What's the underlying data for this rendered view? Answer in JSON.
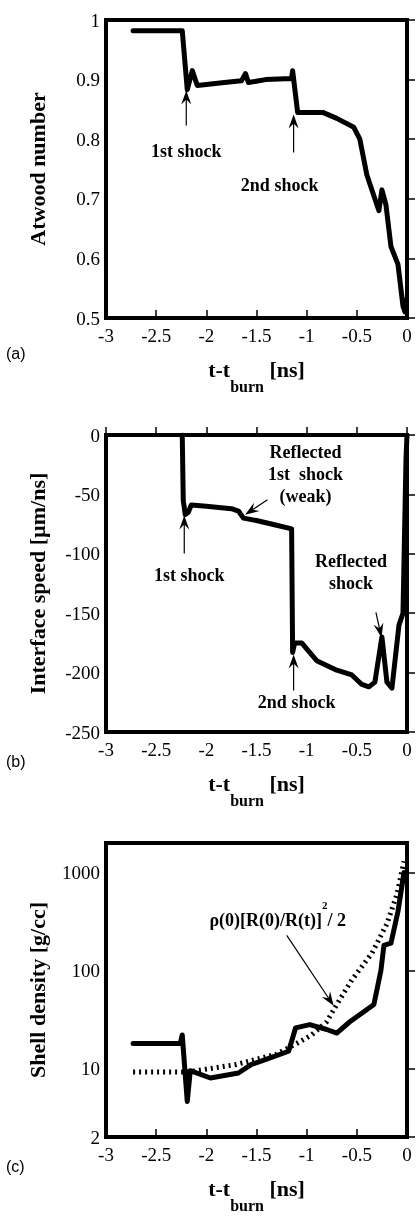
{
  "chart_data": [
    {
      "type": "line",
      "xlabel": "t-t$_{burn}$ [ns]",
      "ylabel": "Atwood number",
      "xlim": [
        -3,
        0
      ],
      "xticks": [
        -3,
        -2.5,
        -2,
        -1.5,
        -1,
        -0.5,
        0
      ],
      "ylim": [
        0.5,
        1
      ],
      "yticks": [
        0.5,
        0.6,
        0.7,
        0.8,
        0.9,
        1
      ],
      "grid": false,
      "marker": "none",
      "annotations": [
        {
          "text": "1st shock",
          "x": -2.2,
          "y": 0.885
        },
        {
          "text": "2nd shock",
          "x": -1.13,
          "y": 0.845
        },
        "(a)"
      ],
      "series": [
        {
          "color": "#000000",
          "line_style": "solid",
          "x": [
            -2.73,
            -2.24,
            -2.19,
            -2.14,
            -2.09,
            -1.82,
            -1.65,
            -1.61,
            -1.58,
            -1.41,
            -1.15,
            -1.14,
            -1.09,
            -0.84,
            -0.7,
            -0.53,
            -0.47,
            -0.4,
            -0.28,
            -0.25,
            -0.21,
            -0.16,
            -0.09,
            -0.04,
            -0.02,
            -0.01
          ],
          "values": [
            0.982,
            0.982,
            0.883,
            0.915,
            0.89,
            0.895,
            0.898,
            0.91,
            0.895,
            0.9,
            0.902,
            0.915,
            0.845,
            0.845,
            0.835,
            0.82,
            0.8,
            0.74,
            0.68,
            0.715,
            0.69,
            0.62,
            0.59,
            0.52,
            0.51,
            0.53
          ]
        }
      ]
    },
    {
      "type": "line",
      "xlabel": "t-t$_{burn}$ [ns]",
      "ylabel": "Interface speed [µm/ns]",
      "xlim": [
        -3,
        0
      ],
      "xticks": [
        -3,
        -2.5,
        -2,
        -1.5,
        -1,
        -0.5,
        0
      ],
      "ylim": [
        -250,
        0
      ],
      "yticks": [
        -250,
        -200,
        -150,
        -100,
        -50,
        0
      ],
      "grid": false,
      "marker": "none",
      "annotations": [
        {
          "text": "1st shock",
          "x": -2.22,
          "y": -66
        },
        {
          "text": "2nd shock",
          "x": -1.13,
          "y": -183
        },
        {
          "text": "Reflected\n1st  shock\n(weak)",
          "x": -1.63,
          "y": -68
        },
        {
          "text": "Reflected\nshock",
          "x": -0.25,
          "y": -172
        },
        "(b)"
      ],
      "series": [
        {
          "color": "#000000",
          "line_style": "solid",
          "x": [
            -2.24,
            -2.23,
            -2.21,
            -2.18,
            -2.15,
            -2.0,
            -1.75,
            -1.68,
            -1.63,
            -1.5,
            -1.3,
            -1.15,
            -1.14,
            -1.12,
            -1.05,
            -0.9,
            -0.7,
            -0.55,
            -0.45,
            -0.38,
            -0.32,
            -0.25,
            -0.2,
            -0.15,
            -0.08,
            -0.04,
            -0.01,
            0
          ],
          "values": [
            0,
            -55,
            -67,
            -65,
            -59,
            -60,
            -62,
            -64,
            -70,
            -72,
            -76,
            -79,
            -183,
            -175,
            -175,
            -190,
            -198,
            -202,
            -210,
            -212,
            -208,
            -170,
            -208,
            -213,
            -160,
            -150,
            -20,
            0
          ]
        }
      ]
    },
    {
      "type": "line",
      "xlabel": "t-t$_{burn}$ [ns]",
      "ylabel": "Shell density [g/cc]",
      "xlim": [
        -3,
        0
      ],
      "xticks": [
        -3,
        -2.5,
        -2,
        -1.5,
        -1,
        -0.5,
        0
      ],
      "ylim": [
        2,
        2000
      ],
      "yticks": [
        2,
        10,
        100,
        1000
      ],
      "log": true,
      "grid": false,
      "marker": "none",
      "annotations": [
        {
          "text": "ρ(0)[R(0)/R(t)]$^{2}$/ 2",
          "x": -0.72,
          "y": 42
        },
        "(c)"
      ],
      "series": [
        {
          "color": "#000000",
          "line_style": "solid",
          "x": [
            -2.73,
            -2.26,
            -2.24,
            -2.19,
            -2.16,
            -1.96,
            -1.82,
            -1.68,
            -1.55,
            -1.35,
            -1.18,
            -1.11,
            -0.97,
            -0.8,
            -0.7,
            -0.57,
            -0.43,
            -0.33,
            -0.26,
            -0.23,
            -0.16,
            -0.09,
            -0.03
          ],
          "values": [
            18,
            18,
            22,
            4.6,
            9.5,
            8,
            8.5,
            9,
            11,
            13,
            15,
            26,
            28,
            25,
            23,
            30,
            38,
            45,
            100,
            180,
            190,
            400,
            1000
          ]
        },
        {
          "color": "#000000",
          "line_style": "dotted",
          "x": [
            -2.73,
            -2.2,
            -2.1,
            -1.7,
            -1.3,
            -1.1,
            -0.95,
            -0.8,
            -0.7,
            -0.55,
            -0.35,
            -0.2,
            -0.1,
            -0.03
          ],
          "values": [
            9.2,
            9.2,
            9.5,
            11,
            14,
            18,
            22,
            30,
            45,
            80,
            150,
            300,
            600,
            1300
          ]
        }
      ]
    }
  ]
}
